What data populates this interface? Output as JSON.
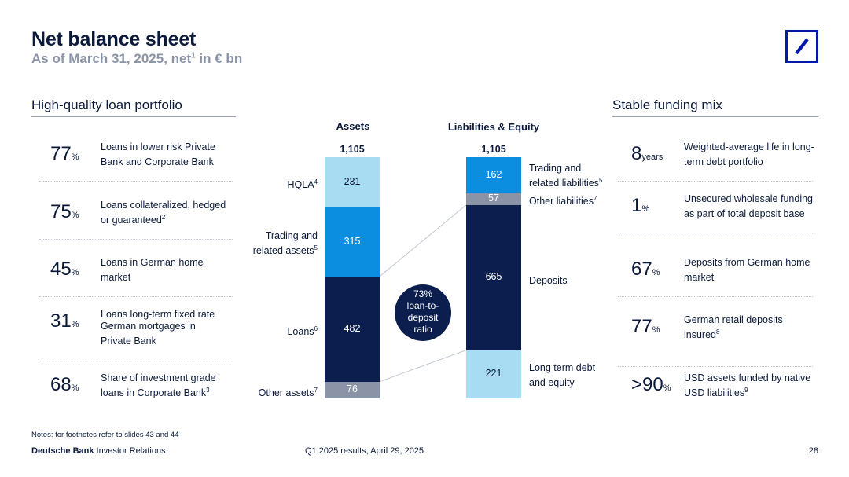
{
  "header": {
    "title": "Net balance sheet",
    "subtitle_pre": "As of March 31, 2025, net",
    "subtitle_sup": "1",
    "subtitle_post": " in € bn"
  },
  "left": {
    "heading": "High-quality loan portfolio",
    "items": [
      {
        "value": "77",
        "unit": "%",
        "text": "Loans in lower risk Private Bank and Corporate Bank",
        "sup": ""
      },
      {
        "value": "75",
        "unit": "%",
        "text": "Loans collateralized, hedged or guaranteed",
        "sup": "2"
      },
      {
        "value": "45",
        "unit": "%",
        "text": "Loans in German home market",
        "sup": ""
      },
      {
        "value": "31",
        "unit": "%",
        "text": "Loans long-term fixed rate German mortgages in Private Bank",
        "sup": ""
      },
      {
        "value": "68",
        "unit": "%",
        "text": "Share of investment grade loans in Corporate Bank",
        "sup": "3"
      }
    ]
  },
  "right": {
    "heading": "Stable funding mix",
    "items": [
      {
        "value": "8",
        "unit": "years",
        "text": "Weighted-average life in long-term debt portfolio",
        "sup": ""
      },
      {
        "value": "1",
        "unit": "%",
        "text": "Unsecured wholesale funding as part of total deposit base",
        "sup": ""
      },
      {
        "value": "67",
        "unit": "%",
        "text": "Deposits from German home market",
        "sup": ""
      },
      {
        "value": "77",
        "unit": "%",
        "text": "German retail deposits insured",
        "sup": "8"
      },
      {
        "value": ">90",
        "unit": "%",
        "text": "USD assets funded by native USD liabilities",
        "sup": "9"
      }
    ]
  },
  "chart_data": {
    "type": "stacked-bar",
    "unit": "€ bn",
    "categories": [
      "Assets",
      "Liabilities & Equity"
    ],
    "totals": [
      "1,105",
      "1,105"
    ],
    "bars": [
      {
        "name": "Assets",
        "total": 1105,
        "segments": [
          {
            "label": "HQLA",
            "sup": "4",
            "value": 231,
            "color": "#a8dcf2",
            "text_color": "#0b1a3a"
          },
          {
            "label": "Trading and related assets",
            "sup": "5",
            "value": 315,
            "color": "#0b8ee0",
            "text_color": "#ffffff"
          },
          {
            "label": "Loans",
            "sup": "6",
            "value": 482,
            "color": "#0c1e4d",
            "text_color": "#ffffff"
          },
          {
            "label": "Other assets",
            "sup": "7",
            "value": 76,
            "color": "#8a94a6",
            "text_color": "#ffffff"
          }
        ]
      },
      {
        "name": "Liabilities & Equity",
        "total": 1105,
        "segments": [
          {
            "label": "Trading and related liabilities",
            "sup": "5",
            "value": 162,
            "color": "#0b8ee0",
            "text_color": "#ffffff"
          },
          {
            "label": "Other liabilities",
            "sup": "7",
            "value": 57,
            "color": "#8a94a6",
            "text_color": "#ffffff"
          },
          {
            "label": "Deposits",
            "sup": "",
            "value": 665,
            "color": "#0c1e4d",
            "text_color": "#ffffff"
          },
          {
            "label": "Long term debt and equity",
            "sup": "",
            "value": 221,
            "color": "#a8dcf2",
            "text_color": "#0b1a3a"
          }
        ]
      }
    ],
    "annotation": {
      "value": "73%",
      "text": "loan-to-deposit ratio"
    }
  },
  "footer": {
    "notes": "Notes: for footnotes refer to slides 43 and 44",
    "brand_bold": "Deutsche Bank",
    "brand_rest": " Investor Relations",
    "event": "Q1 2025 results, April 29, 2025",
    "page": "28"
  }
}
